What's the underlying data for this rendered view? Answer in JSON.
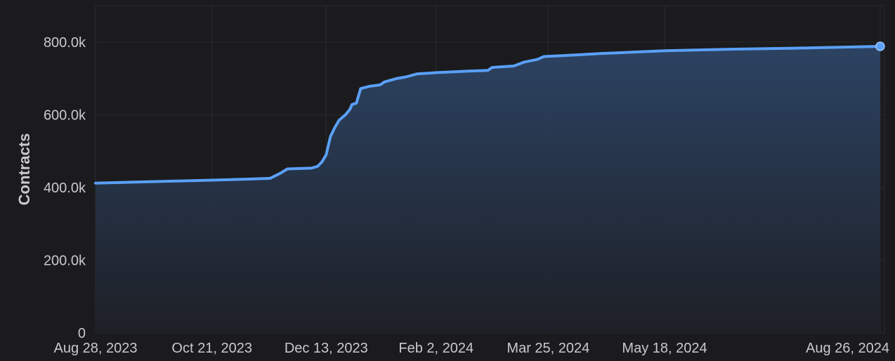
{
  "chart_data": {
    "type": "area",
    "title": "",
    "xlabel": "",
    "ylabel": "Contracts",
    "ylim": [
      0,
      900000
    ],
    "xlim": [
      "2023-08-28",
      "2024-08-28"
    ],
    "grid": true,
    "y_ticks": [
      {
        "value": 0,
        "label": "0"
      },
      {
        "value": 200000,
        "label": "200.0k"
      },
      {
        "value": 400000,
        "label": "400.0k"
      },
      {
        "value": 600000,
        "label": "600.0k"
      },
      {
        "value": 800000,
        "label": "800.0k"
      }
    ],
    "x_ticks": [
      {
        "date": "2023-08-28",
        "label": "Aug 28, 2023"
      },
      {
        "date": "2023-10-21",
        "label": "Oct 21, 2023"
      },
      {
        "date": "2023-12-13",
        "label": "Dec 13, 2023"
      },
      {
        "date": "2024-02-02",
        "label": "Feb 2, 2024"
      },
      {
        "date": "2024-03-25",
        "label": "Mar 25, 2024"
      },
      {
        "date": "2024-05-18",
        "label": "May 18, 2024"
      },
      {
        "date": "2024-08-26",
        "label": "Aug 26, 2024"
      }
    ],
    "series": [
      {
        "color": "#5aa0f7",
        "points": [
          [
            "2023-08-28",
            412000
          ],
          [
            "2023-10-21",
            420000
          ],
          [
            "2023-11-07",
            423000
          ],
          [
            "2023-11-17",
            425000
          ],
          [
            "2023-11-22",
            440000
          ],
          [
            "2023-11-25",
            451000
          ],
          [
            "2023-12-06",
            453000
          ],
          [
            "2023-12-09",
            458000
          ],
          [
            "2023-12-11",
            470000
          ],
          [
            "2023-12-13",
            490000
          ],
          [
            "2023-12-15",
            540000
          ],
          [
            "2023-12-17",
            565000
          ],
          [
            "2023-12-19",
            585000
          ],
          [
            "2023-12-22",
            600000
          ],
          [
            "2023-12-24",
            615000
          ],
          [
            "2023-12-25",
            628000
          ],
          [
            "2023-12-27",
            632000
          ],
          [
            "2023-12-29",
            672000
          ],
          [
            "2024-01-02",
            678000
          ],
          [
            "2024-01-07",
            682000
          ],
          [
            "2024-01-09",
            690000
          ],
          [
            "2024-01-12",
            695000
          ],
          [
            "2024-01-15",
            700000
          ],
          [
            "2024-01-19",
            704000
          ],
          [
            "2024-01-24",
            712000
          ],
          [
            "2024-02-03",
            716000
          ],
          [
            "2024-02-17",
            720000
          ],
          [
            "2024-02-26",
            722000
          ],
          [
            "2024-02-28",
            730000
          ],
          [
            "2024-03-09",
            734000
          ],
          [
            "2024-03-14",
            745000
          ],
          [
            "2024-03-20",
            752000
          ],
          [
            "2024-03-23",
            760000
          ],
          [
            "2024-04-06",
            764000
          ],
          [
            "2024-04-18",
            768000
          ],
          [
            "2024-05-18",
            776000
          ],
          [
            "2024-06-17",
            780000
          ],
          [
            "2024-07-17",
            783000
          ],
          [
            "2024-08-26",
            788000
          ]
        ]
      }
    ]
  }
}
